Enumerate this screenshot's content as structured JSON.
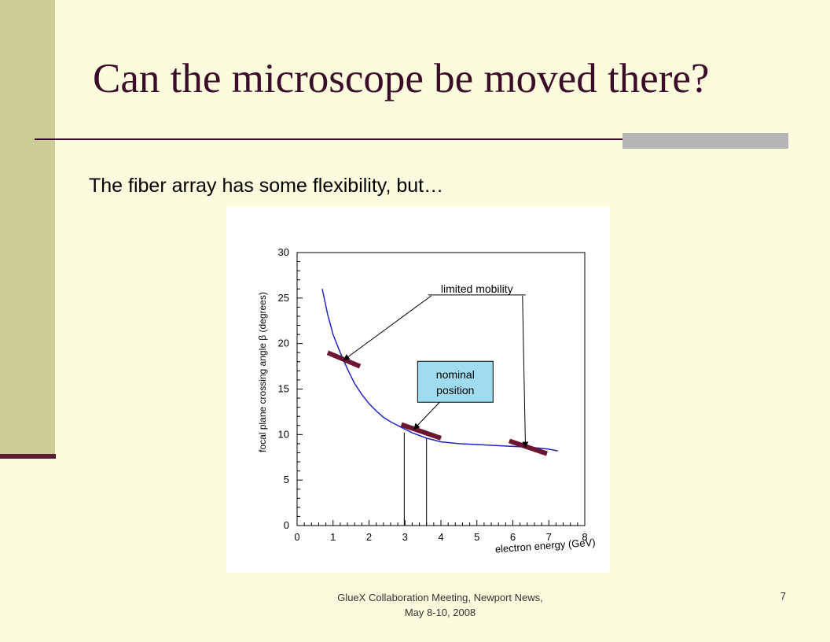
{
  "slide": {
    "title": "Can the microscope be moved there?",
    "subtitle": "The fiber array has some flexibility, but…",
    "footer_line1": "GlueX Collaboration Meeting, Newport News,",
    "footer_line2": "May 8-10, 2008",
    "page_number": "7"
  },
  "colors": {
    "background": "#fbfbdd",
    "band": "#cdcd97",
    "title": "#3b0b2a",
    "accent": "#5a1e37",
    "curve": "#2323c8",
    "callout_fill": "#9fdcf0"
  },
  "chart_data": {
    "type": "line",
    "xlabel": "electron energy (GeV)",
    "ylabel": "focal plane crossing angle β (degrees)",
    "xlim": [
      0,
      8
    ],
    "ylim": [
      0,
      30
    ],
    "xticks": [
      "0",
      "1",
      "2",
      "3",
      "4",
      "5",
      "6",
      "7",
      "8"
    ],
    "yticks": [
      "0",
      "5",
      "10",
      "15",
      "20",
      "25",
      "30"
    ],
    "series": [
      {
        "x": [
          0.7,
          0.85,
          1.0,
          1.2,
          1.4,
          1.6,
          1.8,
          2.0,
          2.2,
          2.4,
          2.6,
          2.8,
          3.0,
          3.2,
          3.4,
          3.6,
          3.8,
          4.0,
          4.5,
          5.0,
          5.5,
          6.0,
          6.5,
          7.0,
          7.25
        ],
        "y": [
          26.0,
          23.2,
          21.0,
          19.0,
          17.2,
          15.6,
          14.4,
          13.4,
          12.6,
          11.9,
          11.4,
          11.0,
          10.6,
          10.2,
          9.9,
          9.6,
          9.4,
          9.2,
          9.0,
          8.9,
          8.8,
          8.7,
          8.6,
          8.4,
          8.2
        ]
      }
    ],
    "segments": [
      {
        "x1": 0.85,
        "y1": 19.0,
        "x2": 1.75,
        "y2": 17.5
      },
      {
        "x1": 2.9,
        "y1": 11.1,
        "x2": 4.0,
        "y2": 9.6
      },
      {
        "x1": 5.9,
        "y1": 9.3,
        "x2": 6.95,
        "y2": 7.9
      }
    ],
    "vertical_lines": [
      {
        "x": 2.98,
        "y_top": 10.2
      },
      {
        "x": 3.6,
        "y_top": 9.6
      }
    ],
    "annotations": [
      {
        "text": "limited mobility",
        "x": 5.0,
        "y": 25.6
      },
      {
        "text": "nominal position",
        "x": 4.4,
        "y": 15.8
      }
    ]
  }
}
